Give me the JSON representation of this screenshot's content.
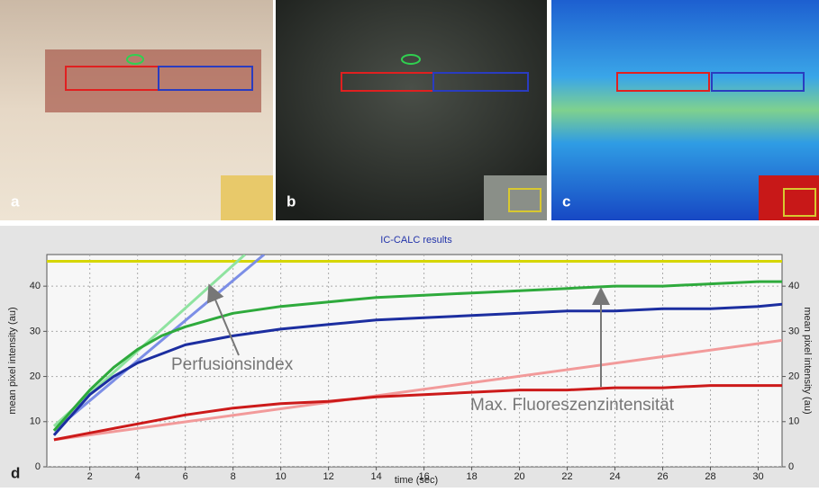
{
  "panels": [
    "a",
    "b",
    "c"
  ],
  "chart_data": {
    "type": "line",
    "title": "IC-CALC results",
    "panel_label": "d",
    "x_label": "time (sec)",
    "y_label": "mean pixel intensity (au)",
    "xlim": [
      0.2,
      31
    ],
    "ylim": [
      0,
      47
    ],
    "xticks": [
      2,
      4,
      6,
      8,
      10,
      12,
      14,
      16,
      18,
      20,
      22,
      24,
      26,
      28,
      30
    ],
    "yticks": [
      0,
      10,
      20,
      30,
      40
    ],
    "grid": true,
    "annotations": [
      "Perfusionsindex",
      "Max. Fluoreszenzintensität"
    ],
    "series": [
      {
        "color": "#d6d600",
        "x": [
          0.2,
          31
        ],
        "values": [
          45.5,
          45.5
        ]
      },
      {
        "color": "#8fe3a0",
        "x": [
          0.5,
          8.5
        ],
        "values": [
          9,
          47
        ]
      },
      {
        "color": "#7c8ee6",
        "x": [
          0.5,
          9.3
        ],
        "values": [
          8,
          47
        ]
      },
      {
        "color": "#f29a9a",
        "x": [
          0.5,
          31
        ],
        "values": [
          6,
          28
        ]
      },
      {
        "color": "#2eaa3c",
        "x": [
          0.5,
          1,
          2,
          3,
          4,
          5,
          6,
          8,
          10,
          12,
          14,
          16,
          18,
          20,
          22,
          24,
          26,
          28,
          30,
          31
        ],
        "values": [
          8,
          11,
          17,
          22,
          26,
          29,
          31,
          34,
          35.5,
          36.5,
          37.5,
          38,
          38.5,
          39,
          39.5,
          40,
          40,
          40.5,
          41,
          41
        ]
      },
      {
        "color": "#1c2ea0",
        "x": [
          0.5,
          1,
          2,
          3,
          4,
          5,
          6,
          8,
          10,
          12,
          14,
          16,
          18,
          20,
          22,
          24,
          26,
          28,
          30,
          31
        ],
        "values": [
          7,
          10,
          16,
          20,
          23,
          25,
          27,
          29,
          30.5,
          31.5,
          32.5,
          33,
          33.5,
          34,
          34.5,
          34.5,
          35,
          35,
          35.5,
          36
        ]
      },
      {
        "color": "#cc1a1a",
        "x": [
          0.5,
          1,
          2,
          3,
          4,
          5,
          6,
          8,
          10,
          12,
          14,
          16,
          18,
          20,
          22,
          24,
          26,
          28,
          30,
          31
        ],
        "values": [
          6,
          6.5,
          7.5,
          8.5,
          9.5,
          10.5,
          11.5,
          13,
          14,
          14.5,
          15.5,
          16,
          16.5,
          17,
          17,
          17.5,
          17.5,
          18,
          18,
          18
        ]
      }
    ]
  }
}
